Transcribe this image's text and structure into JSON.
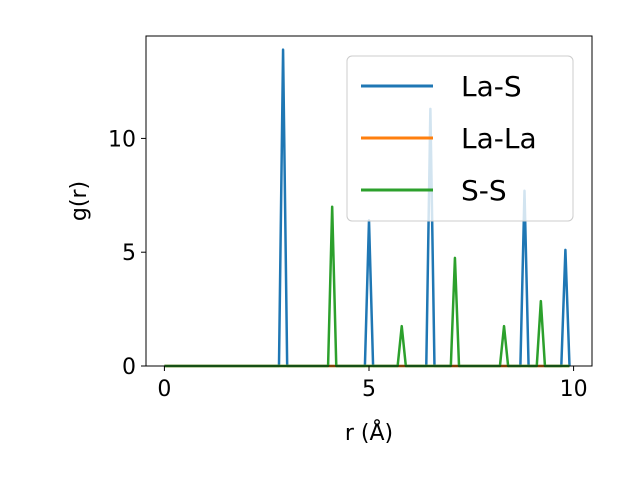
{
  "chart_data": {
    "type": "line",
    "xlabel": "r (Å)",
    "ylabel": "g(r)",
    "xlim": [
      -0.45,
      10.45
    ],
    "ylim": [
      0,
      14.5
    ],
    "x_ticks": [
      0,
      5,
      10
    ],
    "y_ticks": [
      0,
      5,
      10
    ],
    "grid": false,
    "legend_placement": "upper right",
    "series": [
      {
        "name": "La-S",
        "color": "#1f77b4",
        "x": [
          0,
          2.8,
          2.9,
          3.0,
          4.9,
          5.0,
          5.1,
          6.4,
          6.5,
          6.6,
          8.7,
          8.8,
          8.9,
          9.7,
          9.8,
          9.9
        ],
        "y": [
          0,
          0,
          13.9,
          0,
          0,
          6.4,
          0,
          0,
          11.3,
          0,
          0,
          7.7,
          0,
          0,
          5.1,
          0
        ]
      },
      {
        "name": "La-La",
        "color": "#ff7f0e",
        "x": [
          0,
          9.9
        ],
        "y": [
          0,
          0
        ]
      },
      {
        "name": "S-S",
        "color": "#2ca02c",
        "x": [
          0,
          4.0,
          4.1,
          4.2,
          5.7,
          5.8,
          5.9,
          7.0,
          7.1,
          7.2,
          8.2,
          8.3,
          8.4,
          9.1,
          9.2,
          9.3,
          9.9
        ],
        "y": [
          0,
          0,
          7.0,
          0,
          0,
          1.75,
          0,
          0,
          4.75,
          0,
          0,
          1.75,
          0,
          0,
          2.85,
          0,
          0
        ]
      }
    ]
  }
}
